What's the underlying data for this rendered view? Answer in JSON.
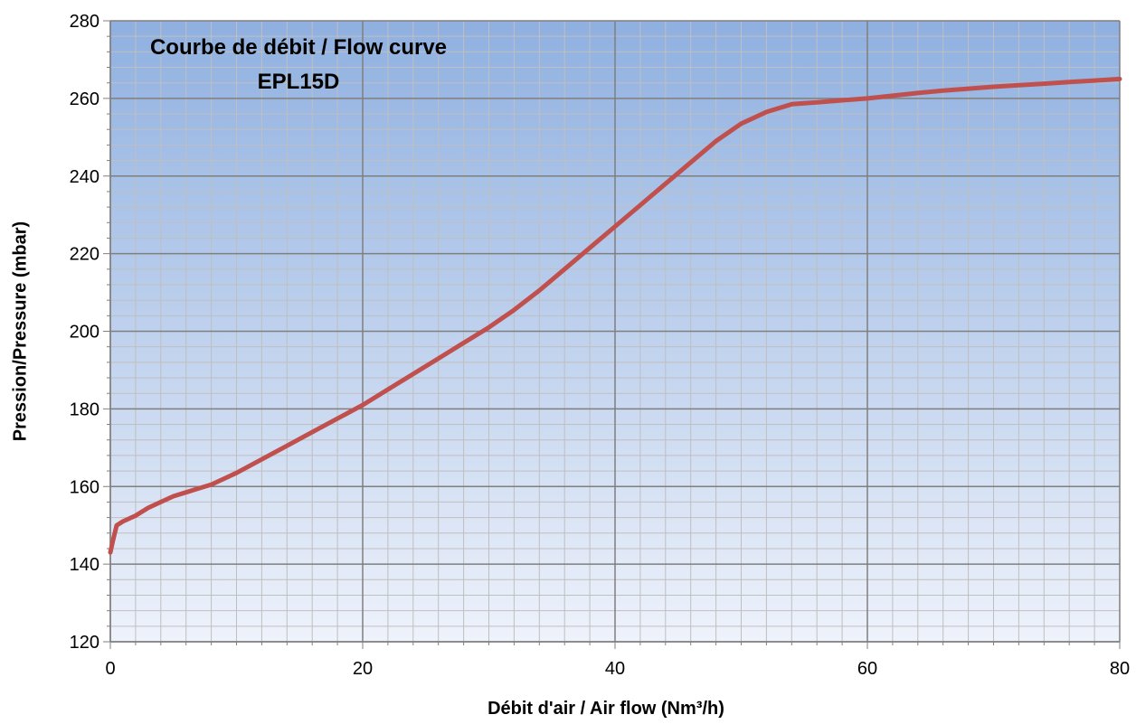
{
  "colors": {
    "plot_top": "#8fb0e0",
    "plot_bottom": "#eef2fb",
    "grid_major": "#7f7f7f",
    "grid_minor": "#bfbfbf",
    "line": "#c0504d",
    "axis": "#7f7f7f"
  },
  "chart_data": {
    "type": "line",
    "title": "Courbe de débit / Flow curve",
    "subtitle": "EPL15D",
    "xlabel": "Débit d'air / Air flow (Nm³/h)",
    "ylabel": "Pression/Pressure (mbar)",
    "xlim": [
      0,
      80
    ],
    "ylim": [
      120,
      280
    ],
    "x_ticks": [
      0,
      20,
      40,
      60,
      80
    ],
    "y_ticks": [
      120,
      140,
      160,
      180,
      200,
      220,
      240,
      260,
      280
    ],
    "x_tick_labels": [
      "0",
      "20",
      "40",
      "60",
      "80"
    ],
    "y_tick_labels": [
      "120",
      "140",
      "160",
      "180",
      "200",
      "220",
      "240",
      "260",
      "280"
    ],
    "x_minor_step": 2,
    "y_minor_step": 4,
    "grid": true,
    "legend": "none",
    "series": [
      {
        "x": [
          0,
          0.2,
          0.5,
          1,
          2,
          3,
          4,
          5,
          6,
          7,
          8,
          10,
          12,
          14,
          16,
          18,
          20,
          22,
          24,
          26,
          28,
          30,
          32,
          34,
          36,
          38,
          40,
          42,
          44,
          46,
          48,
          50,
          52,
          54,
          56,
          58,
          60,
          62,
          64,
          66,
          68,
          70,
          72,
          74,
          76,
          78,
          80
        ],
        "y": [
          143,
          146,
          150,
          151,
          152.5,
          154.5,
          156,
          157.5,
          158.5,
          159.5,
          160.5,
          163.5,
          167,
          170.5,
          174,
          177.5,
          181,
          185,
          189,
          193,
          197,
          201,
          205.5,
          210.5,
          216,
          221.5,
          227,
          232.5,
          238,
          243.5,
          249,
          253.5,
          256.5,
          258.5,
          259,
          259.5,
          260,
          260.7,
          261.4,
          262,
          262.5,
          263,
          263.4,
          263.8,
          264.2,
          264.6,
          265
        ]
      }
    ]
  }
}
